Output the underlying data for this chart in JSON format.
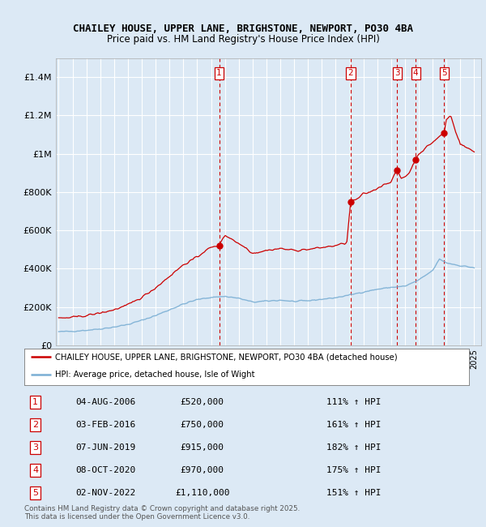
{
  "title_line1": "CHAILEY HOUSE, UPPER LANE, BRIGHSTONE, NEWPORT, PO30 4BA",
  "title_line2": "Price paid vs. HM Land Registry's House Price Index (HPI)",
  "bg_color": "#dce9f5",
  "plot_bg_color": "#dce9f5",
  "grid_color": "#ffffff",
  "house_color": "#cc0000",
  "hpi_color": "#7bafd4",
  "sale_prices": [
    520000,
    750000,
    915000,
    970000,
    1110000
  ],
  "sale_labels": [
    "1",
    "2",
    "3",
    "4",
    "5"
  ],
  "sale_years": [
    2006.583,
    2016.083,
    2019.44,
    2020.77,
    2022.835
  ],
  "sale_info": [
    {
      "label": "1",
      "date": "04-AUG-2006",
      "price": "£520,000",
      "pct": "111% ↑ HPI"
    },
    {
      "label": "2",
      "date": "03-FEB-2016",
      "price": "£750,000",
      "pct": "161% ↑ HPI"
    },
    {
      "label": "3",
      "date": "07-JUN-2019",
      "price": "£915,000",
      "pct": "182% ↑ HPI"
    },
    {
      "label": "4",
      "date": "08-OCT-2020",
      "price": "£970,000",
      "pct": "175% ↑ HPI"
    },
    {
      "label": "5",
      "date": "02-NOV-2022",
      "price": "£1,110,000",
      "pct": "151% ↑ HPI"
    }
  ],
  "legend_house": "CHAILEY HOUSE, UPPER LANE, BRIGHSTONE, NEWPORT, PO30 4BA (detached house)",
  "legend_hpi": "HPI: Average price, detached house, Isle of Wight",
  "footer": "Contains HM Land Registry data © Crown copyright and database right 2025.\nThis data is licensed under the Open Government Licence v3.0.",
  "ylim": [
    0,
    1500000
  ],
  "yticks": [
    0,
    200000,
    400000,
    600000,
    800000,
    1000000,
    1200000,
    1400000
  ],
  "ytick_labels": [
    "£0",
    "£200K",
    "£400K",
    "£600K",
    "£800K",
    "£1M",
    "£1.2M",
    "£1.4M"
  ]
}
